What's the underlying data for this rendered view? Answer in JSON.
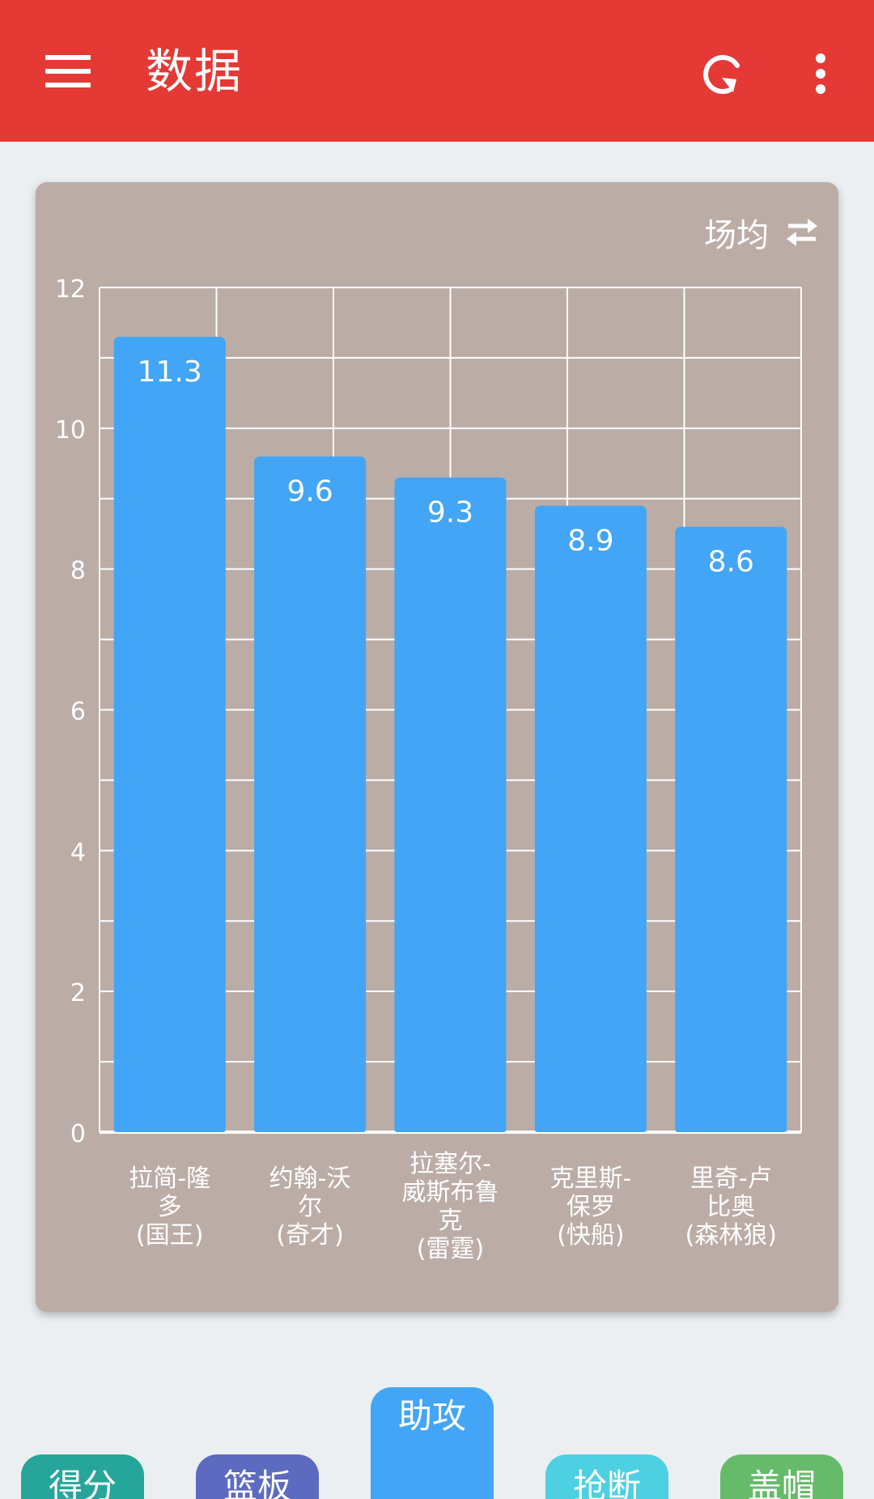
{
  "app_bar": {
    "title": "数据",
    "color": "#e53935",
    "icons": [
      "menu-icon",
      "refresh-icon",
      "more-vertical-icon"
    ]
  },
  "mode_toggle": {
    "label": "场均",
    "icon": "swap-horizontal-icon"
  },
  "chart_data": {
    "type": "bar",
    "categories": [
      [
        "拉简-隆",
        "多",
        "(国王)"
      ],
      [
        "约翰-沃",
        "尔",
        "(奇才)"
      ],
      [
        "拉塞尔-",
        "威斯布鲁",
        "克",
        "(雷霆)"
      ],
      [
        "克里斯-",
        "保罗",
        "(快船)"
      ],
      [
        "里奇-卢",
        "比奥",
        "(森林狼)"
      ]
    ],
    "values": [
      11.3,
      9.6,
      9.3,
      8.9,
      8.6
    ],
    "data_labels": [
      "11.3",
      "9.6",
      "9.3",
      "8.9",
      "8.6"
    ],
    "y_ticks": [
      "0",
      "2",
      "4",
      "6",
      "8",
      "10",
      "12"
    ],
    "ylim": [
      0,
      12
    ],
    "minor_gridlines": true,
    "grid": true,
    "bar_color": "#42a5f5",
    "background_color": "#bcaca6"
  },
  "tabs": [
    {
      "label": "得分",
      "color": "#26a69a",
      "active": false
    },
    {
      "label": "篮板",
      "color": "#5c6bc0",
      "active": false
    },
    {
      "label": "助攻",
      "color": "#42a5f5",
      "active": true
    },
    {
      "label": "抢断",
      "color": "#4dd0e1",
      "active": false
    },
    {
      "label": "盖帽",
      "color": "#66bb6a",
      "active": false
    }
  ]
}
